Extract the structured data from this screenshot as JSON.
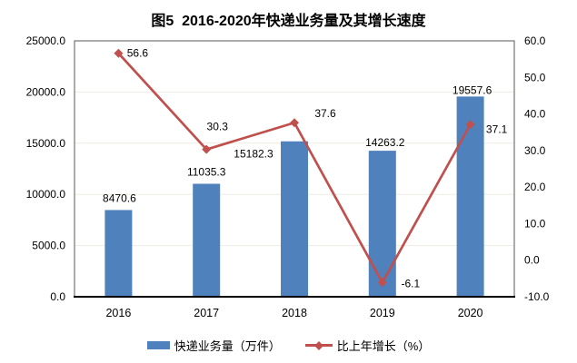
{
  "chart_data": {
    "type": "bar+line",
    "title": "图5  2016-2020年快递业务量及其增长速度",
    "categories": [
      "2016",
      "2017",
      "2018",
      "2019",
      "2020"
    ],
    "series": [
      {
        "name": "快递业务量（万件）",
        "type": "bar",
        "axis": "left",
        "values": [
          8470.6,
          11035.3,
          15182.3,
          14263.2,
          19557.6
        ],
        "labels": [
          "8470.6",
          "11035.3",
          "15182.3",
          "14263.2",
          "19557.6"
        ],
        "color": "#4F81BD"
      },
      {
        "name": "比上年增长（%）",
        "type": "line",
        "axis": "right",
        "values": [
          56.6,
          30.3,
          37.6,
          -6.1,
          37.1
        ],
        "labels": [
          "56.6",
          "30.3",
          "37.6",
          "-6.1",
          "37.1"
        ],
        "color": "#C0504D"
      }
    ],
    "left_axis": {
      "min": 0,
      "max": 25000,
      "tick_labels": [
        "0.0",
        "5000.0",
        "10000.0",
        "15000.0",
        "20000.0",
        "25000.0"
      ]
    },
    "right_axis": {
      "min": -10,
      "max": 60,
      "tick_labels": [
        "-10.0",
        "0.0",
        "10.0",
        "20.0",
        "30.0",
        "40.0",
        "50.0",
        "60.0"
      ]
    },
    "grid": true,
    "grid_color": "#EEECE2",
    "plot_border_color": "#595959",
    "axis_line_color": "#000000",
    "legend_position": "bottom"
  }
}
